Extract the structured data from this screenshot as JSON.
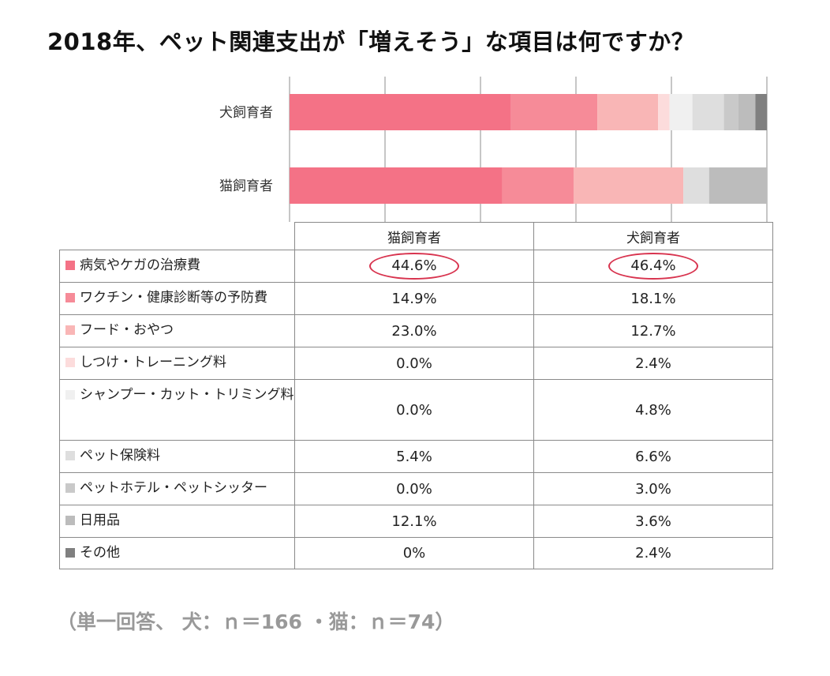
{
  "title": "2018年、ペット関連支出が「増えそう」な項目は何ですか？",
  "note": "（単一回答、 犬：ｎ＝166 ・猫：ｎ＝74）",
  "table": {
    "col_headers": [
      "猫飼育者",
      "犬飼育者"
    ],
    "rows": [
      {
        "label": "病気やケガの治療費",
        "color": "#f47286",
        "cat": "44.6%",
        "dog": "46.4%",
        "highlight": true
      },
      {
        "label": "ワクチン・健康診断等の予防費",
        "color": "#f68b98",
        "cat": "14.9%",
        "dog": "18.1%"
      },
      {
        "label": "フード・おやつ",
        "color": "#f9b6b6",
        "cat": "23.0%",
        "dog": "12.7%"
      },
      {
        "label": "しつけ・トレーニング料",
        "color": "#fcdcdc",
        "cat": "0.0%",
        "dog": "2.4%"
      },
      {
        "label": "シャンプー・カット・トリミング料",
        "color": "#f0f0f0",
        "cat": "0.0%",
        "dog": "4.8%"
      },
      {
        "label": "ペット保険料",
        "color": "#dedede",
        "cat": "5.4%",
        "dog": "6.6%"
      },
      {
        "label": "ペットホテル・ペットシッター",
        "color": "#c9c9c9",
        "cat": "0.0%",
        "dog": "3.0%"
      },
      {
        "label": "日用品",
        "color": "#bcbcbc",
        "cat": "12.1%",
        "dog": "3.6%"
      },
      {
        "label": "その他",
        "color": "#808080",
        "cat": "0%",
        "dog": "2.4%"
      }
    ]
  },
  "chart_data": {
    "type": "bar",
    "orientation": "horizontal",
    "stacked": true,
    "categories": [
      "犬飼育者",
      "猫飼育者"
    ],
    "xlim": [
      0,
      100
    ],
    "grid": true,
    "series": [
      {
        "name": "病気やケガの治療費",
        "color": "#f47286",
        "values": [
          46.4,
          44.6
        ]
      },
      {
        "name": "ワクチン・健康診断等の予防費",
        "color": "#f68b98",
        "values": [
          18.1,
          14.9
        ]
      },
      {
        "name": "フード・おやつ",
        "color": "#f9b6b6",
        "values": [
          12.7,
          23.0
        ]
      },
      {
        "name": "しつけ・トレーニング料",
        "color": "#fcdcdc",
        "values": [
          2.4,
          0.0
        ]
      },
      {
        "name": "シャンプー・カット・トリミング料",
        "color": "#f0f0f0",
        "values": [
          4.8,
          0.0
        ]
      },
      {
        "name": "ペット保険料",
        "color": "#dedede",
        "values": [
          6.6,
          5.4
        ]
      },
      {
        "name": "ペットホテル・ペットシッター",
        "color": "#c9c9c9",
        "values": [
          3.0,
          0.0
        ]
      },
      {
        "name": "日用品",
        "color": "#bcbcbc",
        "values": [
          3.6,
          12.1
        ]
      },
      {
        "name": "その他",
        "color": "#808080",
        "values": [
          2.4,
          0
        ]
      }
    ]
  }
}
